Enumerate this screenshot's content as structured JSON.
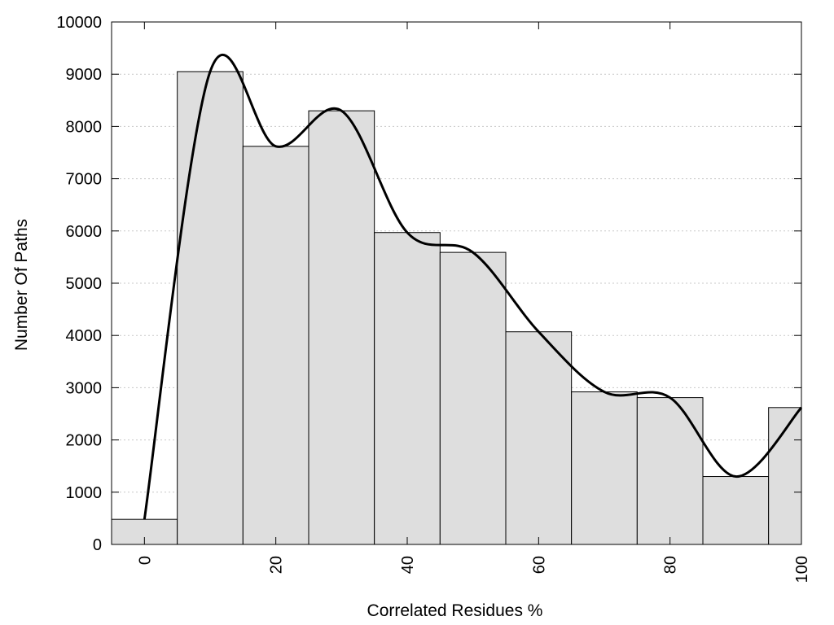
{
  "chart_data": {
    "type": "bar",
    "subtype": "histogram",
    "title": "",
    "xlabel": "Correlated Residues %",
    "ylabel": "Number Of Paths",
    "xlim": [
      -5,
      100
    ],
    "ylim": [
      0,
      10000
    ],
    "x_ticks": [
      0,
      20,
      40,
      60,
      80,
      100
    ],
    "y_ticks": [
      0,
      1000,
      2000,
      3000,
      4000,
      5000,
      6000,
      7000,
      8000,
      9000,
      10000
    ],
    "x_tick_labels": [
      "0",
      "20",
      "40",
      "60",
      "80",
      "100"
    ],
    "y_tick_labels": [
      "0",
      "1000",
      "2000",
      "3000",
      "4000",
      "5000",
      "6000",
      "7000",
      "8000",
      "9000",
      "10000"
    ],
    "bin_width": 10,
    "bins": [
      {
        "center": 0,
        "value": 480
      },
      {
        "center": 10,
        "value": 9050
      },
      {
        "center": 20,
        "value": 7620
      },
      {
        "center": 30,
        "value": 8300
      },
      {
        "center": 40,
        "value": 5970
      },
      {
        "center": 50,
        "value": 5590
      },
      {
        "center": 60,
        "value": 4070
      },
      {
        "center": 70,
        "value": 2920
      },
      {
        "center": 80,
        "value": 2810
      },
      {
        "center": 90,
        "value": 1300
      },
      {
        "center": 100,
        "value": 2620
      }
    ],
    "curve": {
      "type": "smooth-line",
      "x": [
        0,
        10,
        20,
        30,
        40,
        50,
        60,
        70,
        80,
        90,
        100
      ],
      "y": [
        480,
        9050,
        7620,
        8300,
        5970,
        5590,
        4070,
        2920,
        2810,
        1300,
        2620
      ]
    },
    "grid": {
      "y": true,
      "x": false,
      "style": "dotted"
    },
    "legend": "none",
    "colors": {
      "bar_fill": "#dedede",
      "bar_stroke": "#000000",
      "curve": "#000000",
      "grid": "#c8c8c8"
    }
  }
}
